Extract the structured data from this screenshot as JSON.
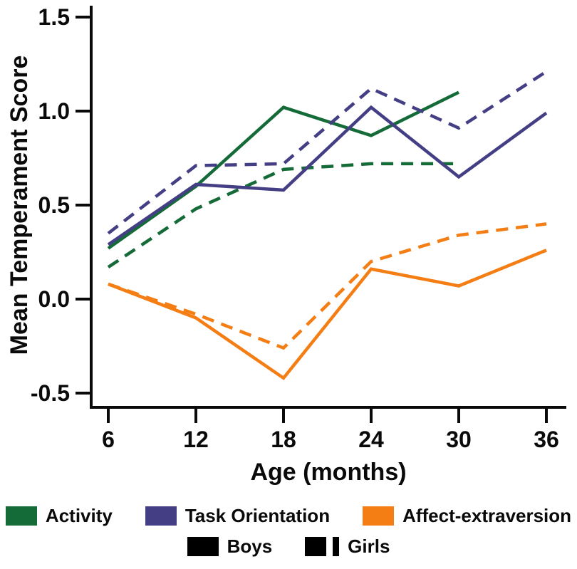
{
  "chart_data": {
    "type": "line",
    "title": "",
    "xlabel": "Age (months)",
    "ylabel": "Mean Temperament Score",
    "x_ticks": [
      6,
      12,
      18,
      24,
      30,
      36
    ],
    "x_tick_labels": [
      "6",
      "12",
      "18",
      "24",
      "30",
      "36"
    ],
    "y_ticks": [
      1.5,
      1.0,
      0.5,
      0.0,
      -0.5
    ],
    "y_tick_labels": [
      "1.5",
      "1.0",
      "0.5",
      "0.0",
      "-0.5"
    ],
    "xlim": [
      4.8,
      37.5
    ],
    "ylim": [
      -0.58,
      1.56
    ],
    "grid": false,
    "legend_position": "bottom",
    "series": [
      {
        "name": "Activity (Boys)",
        "trait": "Activity",
        "group": "Boys",
        "color": "#156b38",
        "style": "solid",
        "x": [
          6,
          12,
          18,
          24,
          30
        ],
        "y": [
          0.27,
          0.6,
          1.02,
          0.87,
          1.1
        ]
      },
      {
        "name": "Activity (Girls)",
        "trait": "Activity",
        "group": "Girls",
        "color": "#156b38",
        "style": "dashed",
        "x": [
          6,
          12,
          18,
          24,
          30
        ],
        "y": [
          0.17,
          0.48,
          0.69,
          0.72,
          0.72
        ]
      },
      {
        "name": "Task Orientation (Boys)",
        "trait": "Task Orientation",
        "group": "Boys",
        "color": "#443f85",
        "style": "solid",
        "x": [
          6,
          12,
          18,
          24,
          30,
          36
        ],
        "y": [
          0.29,
          0.61,
          0.58,
          1.02,
          0.65,
          0.99
        ]
      },
      {
        "name": "Task Orientation (Girls)",
        "trait": "Task Orientation",
        "group": "Girls",
        "color": "#443f85",
        "style": "dashed",
        "x": [
          6,
          12,
          18,
          24,
          30,
          36
        ],
        "y": [
          0.35,
          0.71,
          0.72,
          1.12,
          0.91,
          1.21
        ]
      },
      {
        "name": "Affect-extraversion (Boys)",
        "trait": "Affect-extraversion",
        "group": "Boys",
        "color": "#f47d14",
        "style": "solid",
        "x": [
          6,
          12,
          18,
          24,
          30,
          36
        ],
        "y": [
          0.08,
          -0.1,
          -0.42,
          0.16,
          0.07,
          0.26
        ]
      },
      {
        "name": "Affect-extraversion (Girls)",
        "trait": "Affect-extraversion",
        "group": "Girls",
        "color": "#f47d14",
        "style": "dashed",
        "x": [
          6,
          12,
          18,
          24,
          30,
          36
        ],
        "y": [
          0.08,
          -0.08,
          -0.26,
          0.2,
          0.34,
          0.4
        ]
      }
    ]
  },
  "legend": {
    "traits": [
      {
        "label": "Activity",
        "color": "#156b38"
      },
      {
        "label": "Task Orientation",
        "color": "#443f85"
      },
      {
        "label": "Affect-extraversion",
        "color": "#f47d14"
      }
    ],
    "groups": {
      "boys_label": "Boys",
      "girls_label": "Girls",
      "mark_color": "#000000"
    }
  },
  "colors": {
    "axis": "#0a0a0a",
    "background": "#ffffff"
  }
}
